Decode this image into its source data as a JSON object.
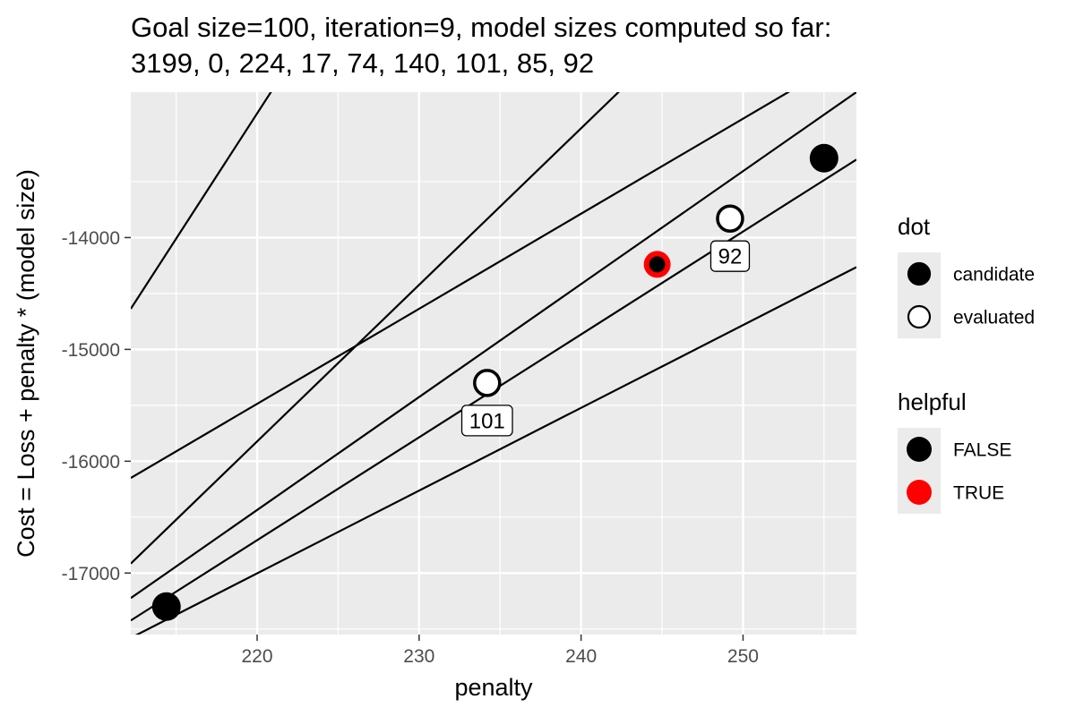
{
  "chart_data": {
    "type": "scatter",
    "title": [
      "Goal size=100, iteration=9, model sizes computed so far:",
      "3199, 0, 224, 17, 74, 140, 101, 85, 92"
    ],
    "xlabel": "penalty",
    "ylabel": "Cost = Loss + penalty * (model size)",
    "xlim": [
      212.2,
      257.0
    ],
    "ylim": [
      -17550,
      -12700
    ],
    "x_ticks": [
      220,
      230,
      240,
      250
    ],
    "y_ticks": [
      -17000,
      -16000,
      -15000,
      -14000
    ],
    "grid": true,
    "lines": [
      {
        "size": 224,
        "cost_at_xmin": -14637
      },
      {
        "size": 140,
        "cost_at_xmin": -16915
      },
      {
        "size": 101,
        "cost_at_xmin": -17224
      },
      {
        "size": 92,
        "cost_at_xmin": -17424
      },
      {
        "size": 85,
        "cost_at_xmin": -16150
      },
      {
        "size": 74,
        "cost_at_xmin": -17580
      }
    ],
    "points": [
      {
        "x": 214.4,
        "y": -17300,
        "dot": "candidate",
        "helpful": "FALSE"
      },
      {
        "x": 234.2,
        "y": -15300,
        "dot": "evaluated",
        "label": "101"
      },
      {
        "x": 244.7,
        "y": -14240,
        "dot": "candidate",
        "helpful": "TRUE"
      },
      {
        "x": 249.2,
        "y": -13830,
        "dot": "evaluated",
        "label": "92"
      },
      {
        "x": 255.0,
        "y": -13290,
        "dot": "candidate",
        "helpful": "FALSE"
      }
    ],
    "legend": {
      "position": "right",
      "groups": [
        {
          "title": "dot",
          "entries": [
            {
              "label": "candidate",
              "fill": "#000000",
              "stroke": "#000000"
            },
            {
              "label": "evaluated",
              "fill": "#ffffff",
              "stroke": "#000000"
            }
          ]
        },
        {
          "title": "helpful",
          "entries": [
            {
              "label": "FALSE",
              "fill": "#000000",
              "stroke": "#000000"
            },
            {
              "label": "TRUE",
              "fill": "#ff0000",
              "stroke": "#ff0000"
            }
          ]
        }
      ]
    },
    "colors": {
      "panel": "#ebebeb",
      "grid_major": "#ffffff",
      "line": "#000000",
      "helpful_true": "#ff0000",
      "helpful_false": "#000000"
    }
  }
}
